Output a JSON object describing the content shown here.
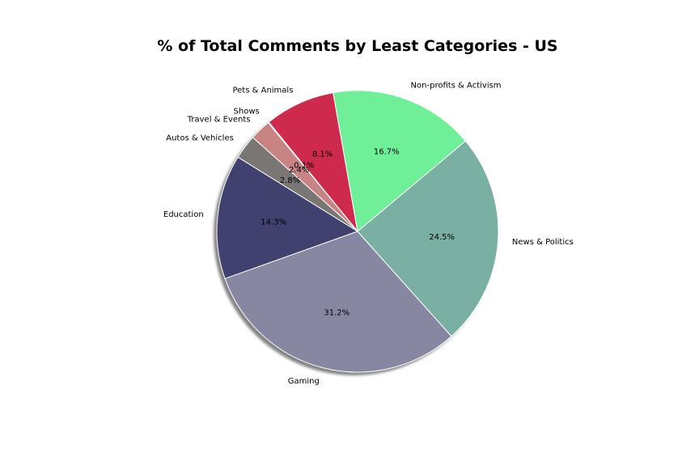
{
  "chart_data": {
    "type": "pie",
    "title": "% of Total Comments by Least Categories - US",
    "start_angle_deg": 100,
    "direction": "counterclockwise",
    "shadow": true,
    "slices": [
      {
        "label": "Pets & Animals",
        "value": 8.1,
        "pct_text": "8.1%",
        "color": "#cd2a4d"
      },
      {
        "label": "Shows",
        "value": 0.1,
        "pct_text": "0.1%",
        "color": "#f0e8e8"
      },
      {
        "label": "Travel & Events",
        "value": 2.4,
        "pct_text": "2.4%",
        "color": "#c88383"
      },
      {
        "label": "Autos & Vehicles",
        "value": 2.8,
        "pct_text": "2.8%",
        "color": "#7a7674"
      },
      {
        "label": "Education",
        "value": 14.3,
        "pct_text": "14.3%",
        "color": "#41416f"
      },
      {
        "label": "Gaming",
        "value": 31.2,
        "pct_text": "31.2%",
        "color": "#8787a2"
      },
      {
        "label": "News & Politics",
        "value": 24.5,
        "pct_text": "24.5%",
        "color": "#7ab0a3"
      },
      {
        "label": "Non-profits & Activism",
        "value": 16.7,
        "pct_text": "16.7%",
        "color": "#70ef99"
      }
    ]
  }
}
